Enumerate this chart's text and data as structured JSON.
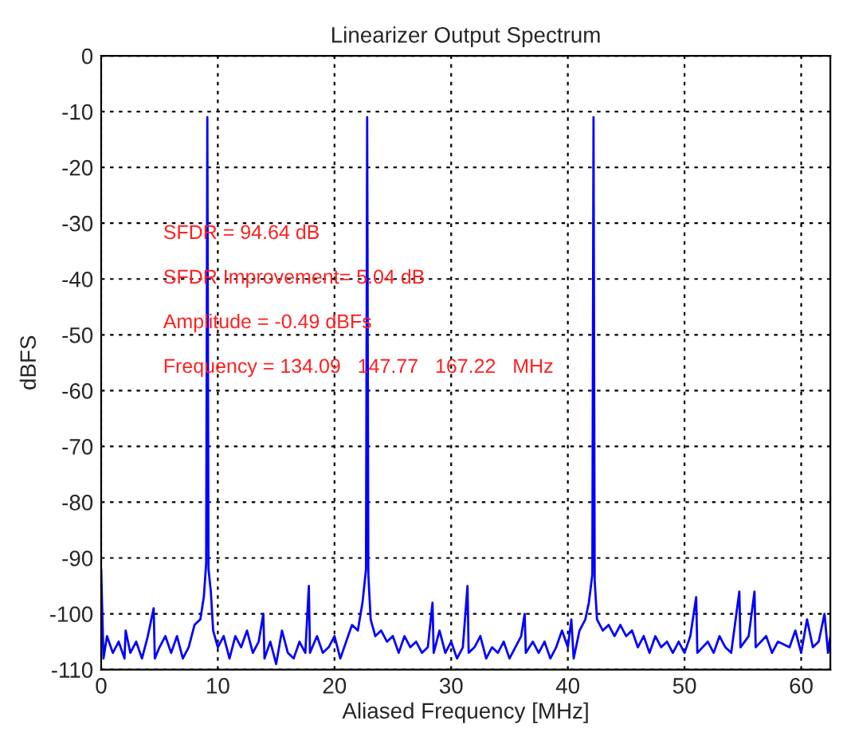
{
  "chart_data": {
    "type": "line",
    "title": "Linearizer Output Spectrum",
    "xlabel": "Aliased Frequency [MHz]",
    "ylabel": "dBFS",
    "xlim": [
      0,
      62.5
    ],
    "xticks": [
      0,
      10,
      20,
      30,
      40,
      50,
      60
    ],
    "ylim": [
      -110,
      0
    ],
    "yticks": [
      -110,
      -100,
      -90,
      -80,
      -70,
      -60,
      -50,
      -40,
      -30,
      -20,
      -10,
      0
    ],
    "grid": true,
    "legend": false,
    "marker": "none",
    "line_style": "solid",
    "annotations": [
      "SFDR = 94.64 dB",
      "SFDR Improvement= 5.04 dB",
      "Amplitude = -0.49 dBFs",
      "Frequency = 134.09   147.77   167.22   MHz"
    ],
    "series": [
      {
        "color": "#0000ff",
        "x": [
          0,
          0.2,
          0.5,
          1,
          1.5,
          2,
          2.1,
          2.5,
          3,
          3.5,
          4,
          4.5,
          4.6,
          5,
          5.5,
          6,
          6.5,
          7,
          7.5,
          8,
          8.5,
          8.8,
          9.0,
          9.1,
          9.2,
          9.4,
          9.6,
          10,
          10.5,
          11,
          11.5,
          12,
          12.5,
          13,
          13.5,
          13.9,
          14,
          14.5,
          15,
          15.5,
          16,
          16.5,
          17,
          17.5,
          17.8,
          17.9,
          18.5,
          19,
          19.5,
          20,
          20.5,
          21,
          21.5,
          22,
          22.4,
          22.7,
          22.8,
          22.9,
          23.1,
          23.5,
          24,
          24.5,
          25,
          25.5,
          26,
          26.5,
          27,
          27.5,
          28,
          28.4,
          28.5,
          29,
          29.5,
          30,
          30.5,
          31,
          31.4,
          31.5,
          32,
          32.5,
          33,
          33.5,
          34,
          34.5,
          35,
          35.5,
          36,
          36.3,
          36.4,
          37,
          37.5,
          38,
          38.5,
          39,
          39.5,
          40,
          40.3,
          40.5,
          41,
          41.5,
          41.8,
          42.1,
          42.2,
          42.3,
          42.5,
          43,
          43.5,
          44,
          44.5,
          45,
          45.5,
          46,
          46.5,
          47,
          47.5,
          48,
          48.5,
          49,
          49.5,
          50,
          50.5,
          51,
          51.1,
          52,
          52.5,
          53,
          53.5,
          54,
          54.7,
          54.8,
          55.5,
          56,
          56.1,
          57,
          57.5,
          58,
          59,
          59.5,
          60,
          60.5,
          61,
          61.5,
          62,
          62.3,
          62.5
        ],
        "values": [
          -92,
          -108,
          -104,
          -107,
          -105,
          -108,
          -103,
          -107,
          -105,
          -108,
          -104,
          -99,
          -108,
          -106,
          -104,
          -107,
          -104,
          -108,
          -106,
          -102,
          -101,
          -97,
          -91,
          -11,
          -92,
          -96,
          -103,
          -106,
          -104,
          -108,
          -104,
          -106,
          -103,
          -107,
          -105,
          -100,
          -108,
          -105,
          -109,
          -103,
          -107,
          -108,
          -105,
          -107,
          -95,
          -107,
          -104,
          -107,
          -106,
          -104,
          -108,
          -105,
          -102,
          -103,
          -98,
          -92,
          -11,
          -93,
          -101,
          -104,
          -103,
          -105,
          -104,
          -107,
          -104,
          -106,
          -105,
          -107,
          -106,
          -98,
          -107,
          -103,
          -107,
          -105,
          -108,
          -106,
          -95,
          -107,
          -106,
          -104,
          -108,
          -106,
          -107,
          -105,
          -108,
          -106,
          -104,
          -100,
          -107,
          -105,
          -107,
          -105,
          -108,
          -106,
          -103,
          -106,
          -101,
          -108,
          -103,
          -101,
          -98,
          -93,
          -11,
          -94,
          -101,
          -103,
          -102,
          -104,
          -102,
          -104,
          -103,
          -106,
          -104,
          -107,
          -104,
          -106,
          -105,
          -107,
          -105,
          -107,
          -104,
          -97,
          -107,
          -105,
          -107,
          -104,
          -106,
          -107,
          -96,
          -106,
          -104,
          -96,
          -106,
          -104,
          -107,
          -105,
          -106,
          -103,
          -107,
          -101,
          -106,
          -105,
          -100,
          -107,
          -104
        ]
      }
    ]
  }
}
